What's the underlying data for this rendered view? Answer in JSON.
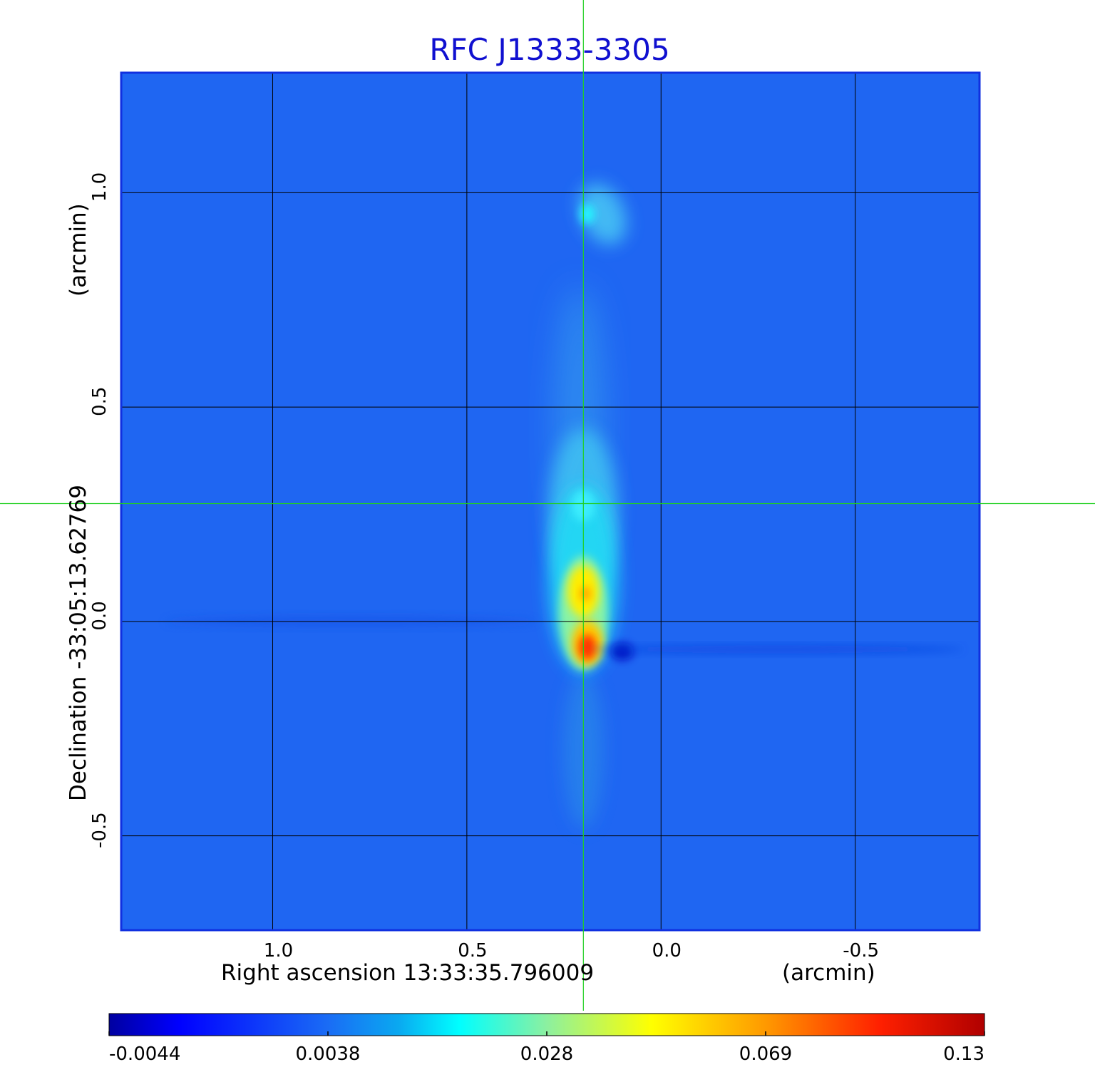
{
  "chart_data": {
    "type": "heatmap",
    "title": "RFC J1333-3305",
    "xlabel": "Right ascension  13:33:35.796009",
    "xunit": "(arcmin)",
    "ylabel": "Declination  -33:05:13.62769",
    "yunit": "(arcmin)",
    "xlim": [
      1.39,
      -0.82
    ],
    "ylim": [
      -0.72,
      1.28
    ],
    "x_ticks": [
      {
        "value": 1.0,
        "label": "1.0"
      },
      {
        "value": 0.5,
        "label": "0.5"
      },
      {
        "value": 0.0,
        "label": "0.0"
      },
      {
        "value": -0.5,
        "label": "-0.5"
      }
    ],
    "y_ticks": [
      {
        "value": 1.0,
        "label": "1.0"
      },
      {
        "value": 0.5,
        "label": "0.5"
      },
      {
        "value": 0.0,
        "label": "0.0"
      },
      {
        "value": -0.5,
        "label": "-0.5"
      }
    ],
    "grid": true,
    "crosshair": {
      "x": 0.2,
      "y": 0.275,
      "color": "#20d020"
    },
    "colormap": "jet",
    "colorbar": {
      "orientation": "horizontal",
      "position": "bottom",
      "scale": "nonlinear",
      "ticks": [
        "-0.0044",
        "0.0038",
        "0.028",
        "0.069",
        "0.13"
      ],
      "range": [
        -0.0044,
        0.13
      ]
    },
    "features": [
      {
        "kind": "core",
        "x": 0.19,
        "y": -0.05,
        "peak": 0.13
      },
      {
        "kind": "jet-knot",
        "x": 0.2,
        "y": 0.07,
        "peak": 0.085
      },
      {
        "kind": "jet",
        "x": 0.2,
        "y": 0.25,
        "peak": 0.03
      },
      {
        "kind": "jet",
        "x": 0.21,
        "y": 0.45,
        "peak": 0.012
      },
      {
        "kind": "knot",
        "x": 0.15,
        "y": 0.95,
        "peak": 0.02
      },
      {
        "kind": "negative",
        "x": 0.1,
        "y": -0.07,
        "peak": -0.0044
      }
    ]
  },
  "colors": {
    "background": "#1f66f2",
    "frame": "#1030e0",
    "grid": "#000000",
    "title": "#1010d0"
  }
}
